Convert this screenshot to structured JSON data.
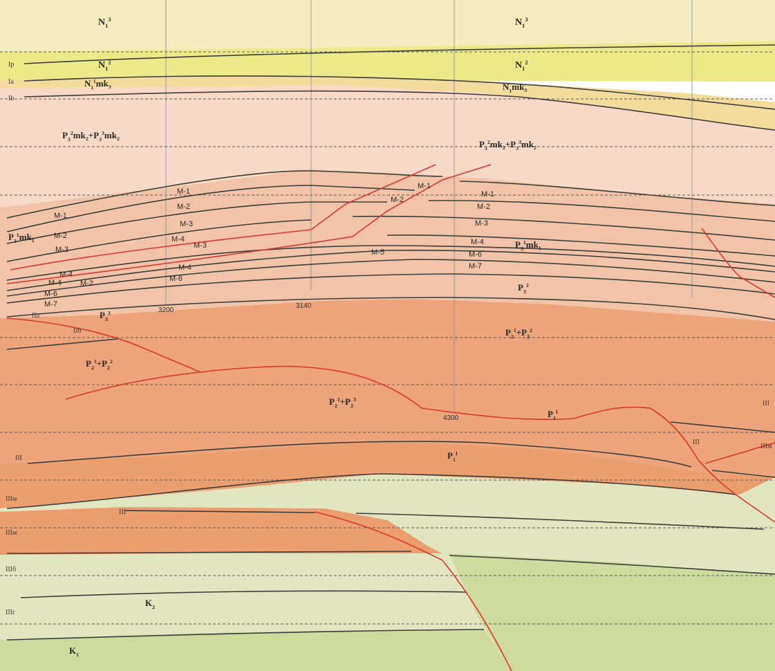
{
  "units": {
    "n1_3_left": {
      "base": "N",
      "sub": "1",
      "sup": "3",
      "tail": ""
    },
    "n1_3_right": {
      "base": "N",
      "sub": "1",
      "sup": "3",
      "tail": ""
    },
    "n1_2_left": {
      "base": "N",
      "sub": "1",
      "sup": "2",
      "tail": ""
    },
    "n1_2_right": {
      "base": "N",
      "sub": "1",
      "sup": "2",
      "tail": ""
    },
    "n1mk3_left": {
      "base": "N",
      "sub": "1",
      "sup": "1",
      "tail": "mk3"
    },
    "n1mk3_right": {
      "base": "N",
      "sub": "1",
      "sup": "",
      "tail": "mk3"
    },
    "p3mk2_left": {
      "text": "P3²mk2+P3³mk2"
    },
    "p3mk2_right": {
      "text": "P3²mk2+P3³mk2"
    },
    "p3mk1_left": {
      "text": "P3¹mk1"
    },
    "p3mk1_right": {
      "text": "P3¹mk1"
    },
    "p3_3": {
      "text": "P3³"
    },
    "p3_2": {
      "text": "P3²"
    },
    "p2_left": {
      "text": "P2¹+P2²"
    },
    "p2_mid": {
      "text": "P2¹+P2³"
    },
    "p2_right": {
      "text": "P2¹+P2²"
    },
    "p1_mid": {
      "text": "P1¹"
    },
    "p1_right": {
      "text": "P1¹"
    },
    "k2": {
      "text": "K2"
    },
    "k1": {
      "text": "K1"
    }
  },
  "seams": {
    "left": [
      "M-1",
      "M-2",
      "M-3",
      "M-4",
      "M-4",
      "M-2",
      "M-6",
      "M-7"
    ],
    "center": [
      "M-1",
      "M-2",
      "M-3",
      "M-4",
      "M-3",
      "M-4",
      "M-6"
    ],
    "fault_block": [
      "M-1",
      "M-2",
      "M-5"
    ],
    "right": [
      "M-1",
      "M-2",
      "M-3",
      "M-4",
      "M-6",
      "M-7"
    ]
  },
  "reflectors": {
    "Ip": "Ip",
    "Ia": "Ia",
    "Ib": "Ib",
    "IIa": "IIa",
    "IIb": "IIb",
    "III_left": "III",
    "III_mid": "III",
    "III_right": "III",
    "III_right2": "III",
    "IIIm_right": "IIIм",
    "IIIm_1": "IIIм",
    "IIIm_2": "IIIм",
    "IIIb": "IIIб",
    "IIIg": "IIIг"
  },
  "depths": [
    "3200",
    "3140",
    "4300"
  ],
  "colors": {
    "neogene_upper": "#f3edbd",
    "neogene_mid": "#ece98a",
    "neogene_band": "#f1dc9c",
    "paleogene_upper": "#f8d9c7",
    "paleogene_mid": "#f2c3a7",
    "paleogene_lower": "#eea47a",
    "cretaceous_upper": "#e1e6bf",
    "cretaceous_lower": "#cfdb9c",
    "fault_line": "#d6392e",
    "horizon_line": "#3b3d3a"
  }
}
